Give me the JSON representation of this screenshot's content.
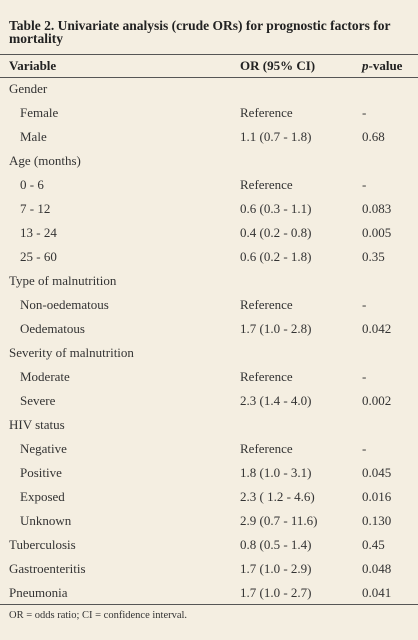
{
  "table": {
    "title": "Table 2. Univariate analysis (crude ORs) for prognostic factors for mortality",
    "columns": [
      "Variable",
      "OR (95% CI)",
      {
        "italic": "p",
        "text": "-value"
      }
    ],
    "groups": [
      {
        "label": "Gender",
        "items": [
          [
            "Female",
            "Reference",
            "-"
          ],
          [
            "Male",
            "1.1 (0.7 - 1.8)",
            "0.68"
          ]
        ]
      },
      {
        "label": "Age (months)",
        "items": [
          [
            "0 - 6",
            "Reference",
            "-"
          ],
          [
            "7 - 12",
            "0.6 (0.3 - 1.1)",
            "0.083"
          ],
          [
            "13 - 24",
            "0.4 (0.2 - 0.8)",
            "0.005"
          ],
          [
            "25 - 60",
            "0.6 (0.2 - 1.8)",
            "0.35"
          ]
        ]
      },
      {
        "label": "Type of malnutrition",
        "items": [
          [
            "Non-oedematous",
            "Reference",
            "-"
          ],
          [
            "Oedematous",
            "1.7 (1.0 - 2.8)",
            "0.042"
          ]
        ]
      },
      {
        "label": "Severity of malnutrition",
        "items": [
          [
            "Moderate",
            "Reference",
            "-"
          ],
          [
            "Severe",
            "2.3 (1.4 - 4.0)",
            "0.002"
          ]
        ]
      },
      {
        "label": "HIV status",
        "items": [
          [
            "Negative",
            "Reference",
            "-"
          ],
          [
            "Positive",
            "1.8 (1.0 - 3.1)",
            "0.045"
          ],
          [
            "Exposed",
            "2.3 ( 1.2 - 4.6)",
            "0.016"
          ],
          [
            "Unknown",
            "2.9 (0.7 - 11.6)",
            "0.130"
          ]
        ]
      },
      {
        "label": "Tuberculosis",
        "or": "0.8 (0.5 - 1.4)",
        "p": "0.45"
      },
      {
        "label": "Gastroenteritis",
        "or": "1.7 (1.0 - 2.9)",
        "p": "0.048"
      },
      {
        "label": "Pneumonia",
        "or": "1.7 (1.0 - 2.7)",
        "p": "0.041"
      }
    ],
    "footnote": "OR = odds ratio; CI = confidence interval."
  }
}
